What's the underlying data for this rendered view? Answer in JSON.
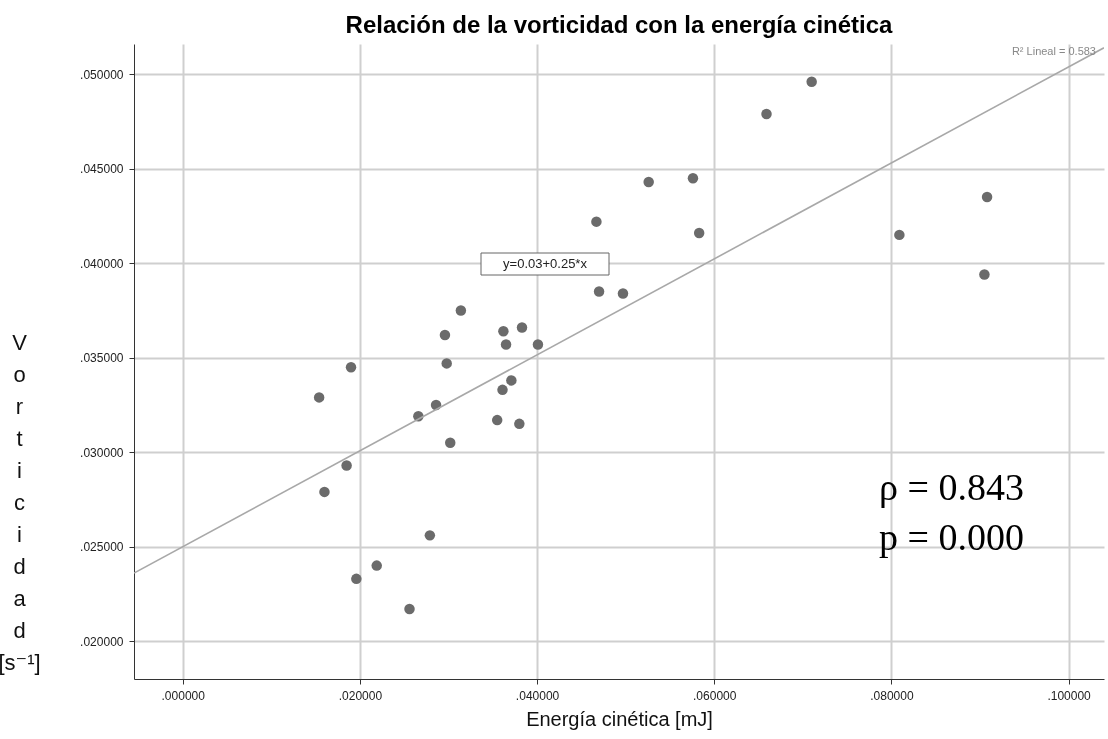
{
  "chart_data": {
    "type": "scatter",
    "title": "Relación de la vorticidad con la energía cinética",
    "xlabel": "Energía cinética [mJ]",
    "ylabel": "Vorticidad [s⁻¹]",
    "xlim": [
      -0.0055,
      0.104
    ],
    "ylim": [
      0.018,
      0.0516
    ],
    "xticks": [
      {
        "value": 0,
        "label": ".000000"
      },
      {
        "value": 0.02,
        "label": ".020000"
      },
      {
        "value": 0.04,
        "label": ".040000"
      },
      {
        "value": 0.06,
        "label": ".060000"
      },
      {
        "value": 0.08,
        "label": ".080000"
      },
      {
        "value": 0.1,
        "label": ".100000"
      }
    ],
    "yticks": [
      {
        "value": 0.02,
        "label": ".020000"
      },
      {
        "value": 0.025,
        "label": ".025000"
      },
      {
        "value": 0.03,
        "label": ".030000"
      },
      {
        "value": 0.035,
        "label": ".035000"
      },
      {
        "value": 0.04,
        "label": ".040000"
      },
      {
        "value": 0.045,
        "label": ".045000"
      },
      {
        "value": 0.05,
        "label": ".050000"
      }
    ],
    "grid": true,
    "marker": "circle",
    "series": [
      {
        "color": "#6b6b6b",
        "x": [
          0.0314,
          0.0296,
          0.0362,
          0.0383,
          0.0365,
          0.0401,
          0.019,
          0.0298,
          0.0154,
          0.0371,
          0.0361,
          0.0286,
          0.0266,
          0.0355,
          0.038,
          0.0302,
          0.0185,
          0.016,
          0.0279,
          0.0219,
          0.0196,
          0.0256,
          0.071,
          0.0659,
          0.0526,
          0.0576,
          0.0467,
          0.0583,
          0.0809,
          0.0908,
          0.0905,
          0.047,
          0.0497
        ],
        "values": [
          0.0375,
          0.0362,
          0.0364,
          0.0366,
          0.0357,
          0.0357,
          0.0345,
          0.0347,
          0.0329,
          0.0338,
          0.0333,
          0.0325,
          0.0319,
          0.0317,
          0.0315,
          0.0305,
          0.0293,
          0.0279,
          0.0256,
          0.024,
          0.0233,
          0.0217,
          0.0496,
          0.0479,
          0.0443,
          0.0445,
          0.0422,
          0.0416,
          0.0415,
          0.0435,
          0.0394,
          0.0385,
          0.0384
        ]
      },
      {
        "type": "line",
        "marker": "none",
        "color": "#a8a8a8",
        "x": [
          -0.0055,
          0.104
        ],
        "values": [
          0.0236,
          0.0514
        ]
      }
    ],
    "annotations": [
      "y=0.03+0.25*x",
      "R² Lineal = 0.583",
      "ρ = 0.843",
      "p = 0.000"
    ]
  }
}
